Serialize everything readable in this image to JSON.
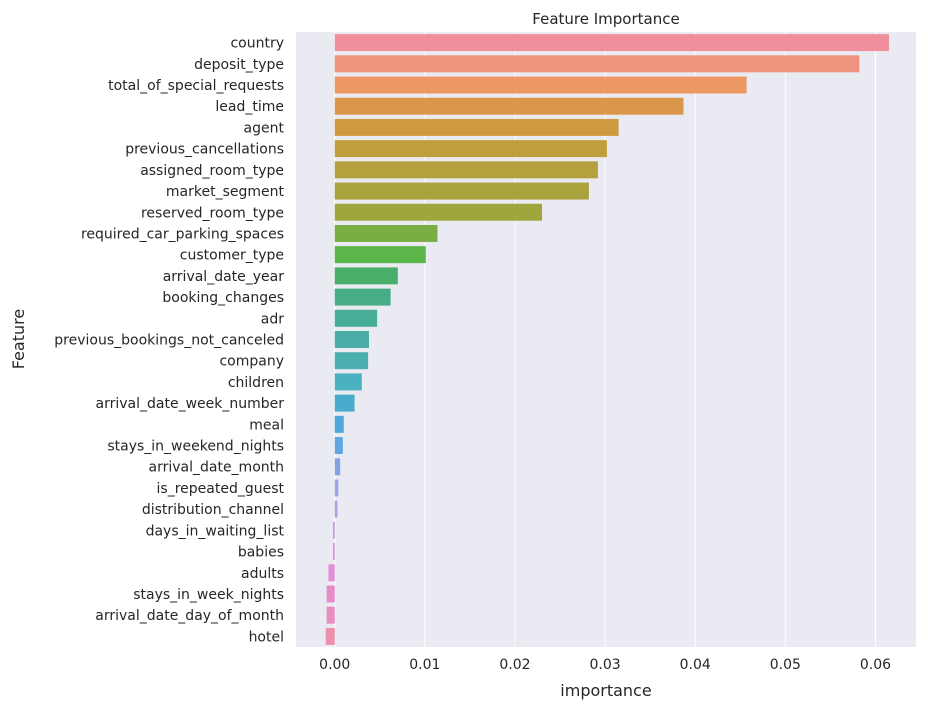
{
  "chart_data": {
    "type": "bar",
    "orientation": "horizontal",
    "title": "Feature Importance",
    "xlabel": "importance",
    "ylabel": "Feature",
    "xlim": [
      -0.0043,
      0.0645
    ],
    "xticks": [
      0.0,
      0.01,
      0.02,
      0.03,
      0.04,
      0.05,
      0.06
    ],
    "xtick_labels": [
      "0.00",
      "0.01",
      "0.02",
      "0.03",
      "0.04",
      "0.05",
      "0.06"
    ],
    "grid": true,
    "background": "#eaeaf2",
    "categories": [
      "country",
      "deposit_type",
      "total_of_special_requests",
      "lead_time",
      "agent",
      "previous_cancellations",
      "assigned_room_type",
      "market_segment",
      "reserved_room_type",
      "required_car_parking_spaces",
      "customer_type",
      "arrival_date_year",
      "booking_changes",
      "adr",
      "previous_bookings_not_canceled",
      "company",
      "children",
      "arrival_date_week_number",
      "meal",
      "stays_in_weekend_nights",
      "arrival_date_month",
      "is_repeated_guest",
      "distribution_channel",
      "days_in_waiting_list",
      "babies",
      "adults",
      "stays_in_week_nights",
      "arrival_date_day_of_month",
      "hotel"
    ],
    "values": [
      0.0615,
      0.0582,
      0.0457,
      0.0387,
      0.0315,
      0.0302,
      0.0292,
      0.0282,
      0.023,
      0.0114,
      0.0101,
      0.007,
      0.0062,
      0.0047,
      0.0038,
      0.0037,
      0.003,
      0.0022,
      0.001,
      0.0009,
      0.0006,
      0.0004,
      0.0003,
      -0.0002,
      -0.0002,
      -0.0007,
      -0.0009,
      -0.0009,
      -0.001
    ],
    "colors": [
      "#f08e9c",
      "#ee937d",
      "#ed9765",
      "#da974c",
      "#cd9a3f",
      "#be9e3d",
      "#b4a03c",
      "#a9a23d",
      "#9ea73d",
      "#7aae42",
      "#5ab649",
      "#4aae6b",
      "#46ad86",
      "#48ad97",
      "#4aaea6",
      "#4bafb0",
      "#4bb0bf",
      "#4aaccd",
      "#4ba8d8",
      "#62a6e0",
      "#84a3e2",
      "#9fa2e3",
      "#b19fe5",
      "#c59be3",
      "#d593e0",
      "#e08fd9",
      "#e68dc9",
      "#e88dbc",
      "#ec90ab"
    ]
  }
}
